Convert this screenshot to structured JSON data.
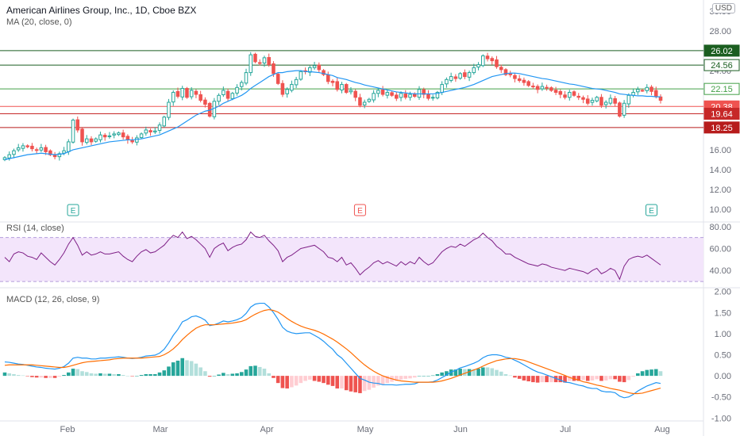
{
  "header": {
    "title": "American Airlines Group, Inc., 1D, Cboe BZX",
    "ma_label": "MA (20, close, 0)",
    "currency": "USD"
  },
  "colors": {
    "up": "#26a69a",
    "down": "#ef5350",
    "ma": "#2196f3",
    "macd_line": "#2196f3",
    "signal_line": "#ff6d00",
    "rsi_line": "#7e1f86",
    "rsi_band": "#f3e5fb",
    "green_level": "#1b5e20",
    "red_level": "#c62828"
  },
  "chart_data": [
    {
      "type": "candlestick",
      "title": "American Airlines Group, Inc., 1D, Cboe BZX",
      "ylim": [
        9.5,
        30.5
      ],
      "y_ticks": [
        "10.00",
        "12.00",
        "14.00",
        "16.00",
        "18.00",
        "20.00",
        "22.00",
        "24.00",
        "26.00",
        "28.00",
        "30.00"
      ],
      "x_ticks": [
        "Feb",
        "Mar",
        "Apr",
        "May",
        "Jun",
        "Jul",
        "Aug"
      ],
      "close": [
        15.2,
        15.5,
        15.9,
        16.2,
        16.4,
        16.3,
        16.1,
        16.0,
        16.2,
        15.8,
        15.5,
        15.3,
        15.6,
        15.9,
        16.8,
        19.0,
        18.0,
        16.8,
        17.1,
        16.8,
        17.1,
        17.5,
        17.3,
        17.4,
        17.6,
        17.7,
        17.3,
        17.0,
        16.8,
        17.2,
        17.6,
        18.0,
        17.8,
        17.9,
        18.5,
        19.3,
        20.8,
        21.8,
        21.4,
        22.2,
        21.3,
        22.0,
        21.6,
        21.0,
        20.6,
        19.4,
        20.9,
        21.5,
        22.0,
        21.2,
        21.7,
        22.3,
        22.8,
        23.8,
        25.6,
        24.9,
        24.8,
        25.3,
        24.6,
        23.7,
        22.7,
        21.6,
        22.1,
        22.6,
        23.1,
        23.9,
        23.9,
        24.3,
        24.5,
        24.1,
        23.6,
        22.9,
        22.8,
        22.1,
        22.6,
        21.8,
        22.0,
        21.3,
        20.5,
        20.8,
        21.1,
        21.7,
        22.0,
        21.6,
        21.8,
        21.5,
        21.2,
        21.7,
        21.3,
        21.6,
        21.4,
        22.1,
        21.6,
        21.2,
        21.3,
        21.8,
        22.6,
        23.1,
        23.4,
        23.2,
        23.7,
        23.4,
        23.8,
        24.3,
        24.6,
        25.5,
        25.2,
        25.0,
        24.4,
        24.1,
        23.6,
        23.6,
        23.2,
        23.0,
        22.8,
        22.5,
        22.4,
        22.1,
        22.4,
        22.3,
        22.0,
        21.8,
        21.6,
        21.3,
        21.8,
        21.5,
        21.3,
        21.1,
        20.7,
        21.0,
        21.3,
        20.5,
        20.8,
        21.2,
        20.7,
        19.4,
        20.7,
        21.5,
        21.8,
        22.1,
        22.0,
        22.3,
        21.9,
        21.4,
        21.0
      ],
      "ma20": [
        15.0,
        15.1,
        15.2,
        15.3,
        15.4,
        15.5,
        15.55,
        15.6,
        15.65,
        15.6,
        15.55,
        15.5,
        15.55,
        15.6,
        15.8,
        16.0,
        16.1,
        16.2,
        16.3,
        16.4,
        16.5,
        16.6,
        16.7,
        16.8,
        16.85,
        16.9,
        16.95,
        17.0,
        17.0,
        17.05,
        17.1,
        17.2,
        17.3,
        17.4,
        17.5,
        17.7,
        17.9,
        18.1,
        18.3,
        18.6,
        18.9,
        19.2,
        19.5,
        19.7,
        19.9,
        20.0,
        20.2,
        20.4,
        20.7,
        20.9,
        21.1,
        21.3,
        21.5,
        21.8,
        22.2,
        22.5,
        22.8,
        23.1,
        23.4,
        23.6,
        23.8,
        23.8,
        23.9,
        23.95,
        24.0,
        24.0,
        23.9,
        23.9,
        23.85,
        23.8,
        23.7,
        23.6,
        23.5,
        23.3,
        23.2,
        23.1,
        22.95,
        22.8,
        22.7,
        22.55,
        22.45,
        22.35,
        22.25,
        22.15,
        22.05,
        21.95,
        21.85,
        21.8,
        21.75,
        21.7,
        21.65,
        21.65,
        21.65,
        21.65,
        21.65,
        21.7,
        21.8,
        21.9,
        22.0,
        22.1,
        22.2,
        22.3,
        22.45,
        22.6,
        22.8,
        23.0,
        23.2,
        23.4,
        23.5,
        23.6,
        23.7,
        23.75,
        23.75,
        23.7,
        23.6,
        23.5,
        23.4,
        23.3,
        23.2,
        23.15,
        23.05,
        22.95,
        22.85,
        22.75,
        22.65,
        22.6,
        22.5,
        22.4,
        22.3,
        22.2,
        22.15,
        22.1,
        22.0,
        21.9,
        21.8,
        21.65,
        21.6,
        21.55,
        21.5,
        21.45,
        21.45,
        21.4,
        21.4,
        21.35,
        21.35
      ]
    },
    {
      "type": "line",
      "title": "RSI (14, close)",
      "ylim": [
        25,
        82
      ],
      "y_ticks": [
        "40.00",
        "60.00",
        "80.00"
      ],
      "band": [
        30,
        70
      ],
      "values": [
        52,
        48,
        55,
        57,
        56,
        53,
        52,
        50,
        56,
        52,
        48,
        45,
        50,
        56,
        64,
        70,
        63,
        54,
        57,
        54,
        55,
        57,
        55,
        55,
        56,
        57,
        53,
        50,
        48,
        53,
        57,
        59,
        56,
        57,
        60,
        63,
        68,
        72,
        70,
        75,
        69,
        71,
        68,
        64,
        60,
        52,
        60,
        63,
        65,
        58,
        61,
        63,
        64,
        68,
        75,
        71,
        70,
        72,
        67,
        63,
        58,
        48,
        52,
        54,
        57,
        60,
        61,
        62,
        63,
        60,
        57,
        52,
        51,
        48,
        52,
        45,
        47,
        42,
        36,
        40,
        43,
        47,
        49,
        46,
        48,
        46,
        44,
        48,
        45,
        48,
        46,
        52,
        48,
        45,
        47,
        52,
        57,
        60,
        62,
        61,
        64,
        62,
        65,
        68,
        70,
        74,
        70,
        67,
        62,
        59,
        55,
        55,
        52,
        50,
        48,
        46,
        45,
        44,
        46,
        45,
        43,
        42,
        41,
        40,
        42,
        41,
        40,
        39,
        37,
        40,
        42,
        37,
        39,
        42,
        40,
        32,
        44,
        50,
        52,
        53,
        52,
        54,
        51,
        48,
        45
      ]
    },
    {
      "type": "line",
      "title": "MACD (12, 26, close, 9)",
      "ylim": [
        -1.05,
        2.05
      ],
      "y_ticks": [
        "-1.00",
        "-0.50",
        "0.00",
        "0.50",
        "1.00",
        "1.50",
        "2.00"
      ],
      "macd": [
        0.33,
        0.32,
        0.3,
        0.28,
        0.27,
        0.25,
        0.23,
        0.21,
        0.2,
        0.18,
        0.17,
        0.16,
        0.18,
        0.22,
        0.3,
        0.42,
        0.44,
        0.42,
        0.42,
        0.4,
        0.4,
        0.42,
        0.42,
        0.43,
        0.44,
        0.45,
        0.44,
        0.42,
        0.41,
        0.42,
        0.44,
        0.47,
        0.48,
        0.49,
        0.54,
        0.63,
        0.78,
        0.96,
        1.1,
        1.28,
        1.33,
        1.4,
        1.42,
        1.38,
        1.32,
        1.19,
        1.21,
        1.25,
        1.3,
        1.28,
        1.3,
        1.33,
        1.38,
        1.48,
        1.63,
        1.7,
        1.72,
        1.72,
        1.63,
        1.5,
        1.34,
        1.15,
        1.06,
        1.02,
        1.0,
        1.01,
        1.02,
        1.02,
        0.96,
        0.9,
        0.82,
        0.72,
        0.63,
        0.5,
        0.42,
        0.3,
        0.18,
        0.06,
        -0.06,
        -0.1,
        -0.15,
        -0.17,
        -0.18,
        -0.21,
        -0.21,
        -0.21,
        -0.22,
        -0.21,
        -0.2,
        -0.2,
        -0.19,
        -0.15,
        -0.15,
        -0.15,
        -0.14,
        -0.1,
        -0.04,
        0.02,
        0.09,
        0.13,
        0.19,
        0.22,
        0.26,
        0.3,
        0.35,
        0.43,
        0.48,
        0.5,
        0.5,
        0.48,
        0.44,
        0.42,
        0.37,
        0.32,
        0.26,
        0.2,
        0.14,
        0.09,
        0.06,
        0.02,
        -0.02,
        -0.06,
        -0.1,
        -0.15,
        -0.16,
        -0.19,
        -0.22,
        -0.24,
        -0.28,
        -0.3,
        -0.3,
        -0.36,
        -0.38,
        -0.38,
        -0.4,
        -0.48,
        -0.52,
        -0.5,
        -0.44,
        -0.36,
        -0.3,
        -0.24,
        -0.2,
        -0.16,
        -0.18
      ],
      "signal": [
        0.25,
        0.26,
        0.26,
        0.26,
        0.26,
        0.26,
        0.26,
        0.25,
        0.24,
        0.23,
        0.22,
        0.21,
        0.2,
        0.2,
        0.22,
        0.25,
        0.28,
        0.31,
        0.33,
        0.34,
        0.35,
        0.36,
        0.37,
        0.38,
        0.4,
        0.41,
        0.42,
        0.42,
        0.42,
        0.42,
        0.42,
        0.43,
        0.44,
        0.45,
        0.46,
        0.5,
        0.56,
        0.64,
        0.74,
        0.86,
        0.96,
        1.05,
        1.13,
        1.18,
        1.21,
        1.21,
        1.21,
        1.22,
        1.23,
        1.24,
        1.25,
        1.27,
        1.29,
        1.33,
        1.4,
        1.46,
        1.51,
        1.55,
        1.57,
        1.55,
        1.51,
        1.44,
        1.36,
        1.29,
        1.23,
        1.18,
        1.14,
        1.11,
        1.08,
        1.04,
        0.99,
        0.93,
        0.87,
        0.8,
        0.72,
        0.64,
        0.55,
        0.45,
        0.35,
        0.26,
        0.18,
        0.11,
        0.05,
        0.0,
        -0.04,
        -0.07,
        -0.1,
        -0.12,
        -0.13,
        -0.14,
        -0.15,
        -0.15,
        -0.15,
        -0.15,
        -0.15,
        -0.14,
        -0.12,
        -0.09,
        -0.06,
        -0.02,
        0.02,
        0.06,
        0.1,
        0.14,
        0.18,
        0.23,
        0.28,
        0.32,
        0.36,
        0.38,
        0.4,
        0.41,
        0.41,
        0.39,
        0.37,
        0.33,
        0.29,
        0.25,
        0.21,
        0.17,
        0.13,
        0.09,
        0.05,
        0.01,
        -0.04,
        -0.07,
        -0.1,
        -0.14,
        -0.16,
        -0.19,
        -0.22,
        -0.24,
        -0.27,
        -0.3,
        -0.32,
        -0.34,
        -0.37,
        -0.4,
        -0.42,
        -0.42,
        -0.41,
        -0.38,
        -0.35,
        -0.32,
        -0.29
      ]
    }
  ],
  "price_levels": [
    {
      "label": "26.02",
      "value": 26.02,
      "color": "#1b5e20",
      "style": "solid"
    },
    {
      "label": "24.56",
      "value": 24.56,
      "color": "#1b5e20",
      "style": "outline"
    },
    {
      "label": "22.15",
      "value": 22.15,
      "color": "#43a047",
      "style": "outline"
    },
    {
      "label": "20.38",
      "value": 20.38,
      "color": "#ef5350",
      "style": "solid"
    },
    {
      "label": "19.64",
      "value": 19.64,
      "color": "#c62828",
      "style": "solid"
    },
    {
      "label": "18.25",
      "value": 18.25,
      "color": "#b71c1c",
      "style": "solid"
    }
  ],
  "earnings_markers": [
    {
      "label": "E",
      "date_index": 15,
      "color": "#26a69a"
    },
    {
      "label": "E",
      "date_index": 78,
      "color": "#ef5350"
    },
    {
      "label": "E",
      "date_index": 142,
      "color": "#26a69a"
    }
  ]
}
